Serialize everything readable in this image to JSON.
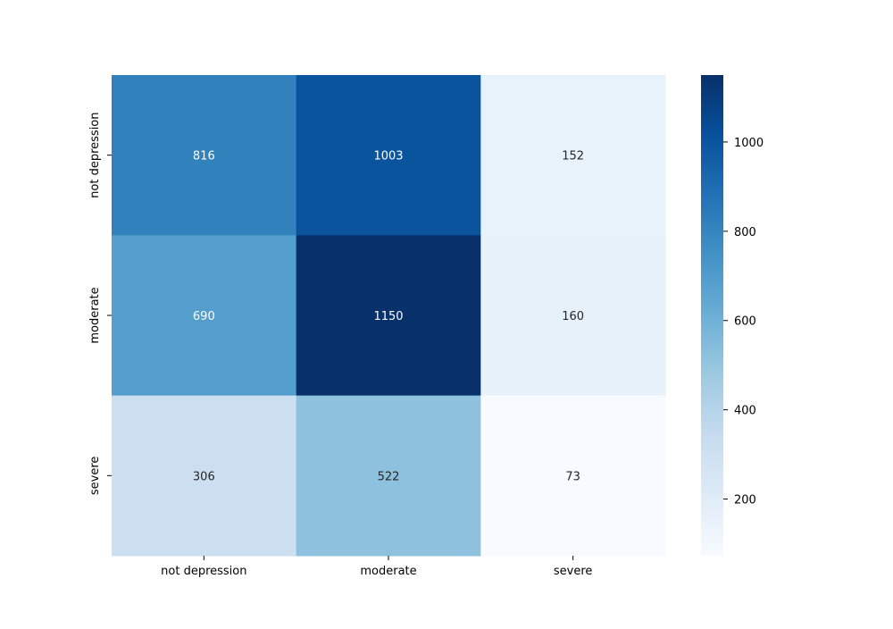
{
  "chart_data": {
    "type": "heatmap",
    "title": "",
    "xlabel": "",
    "ylabel": "",
    "x_categories": [
      "not depression",
      "moderate",
      "severe"
    ],
    "y_categories": [
      "not depression",
      "moderate",
      "severe"
    ],
    "values": [
      [
        816,
        1003,
        152
      ],
      [
        690,
        1150,
        160
      ],
      [
        306,
        522,
        73
      ]
    ],
    "colormap": "Blues",
    "color_range": [
      73,
      1150
    ],
    "colorbar_ticks": [
      200,
      400,
      600,
      800,
      1000
    ],
    "colors": {
      "low": "#f7fbff",
      "high": "#08306b",
      "label_dark": "#262626",
      "label_light": "#ffffff"
    }
  }
}
